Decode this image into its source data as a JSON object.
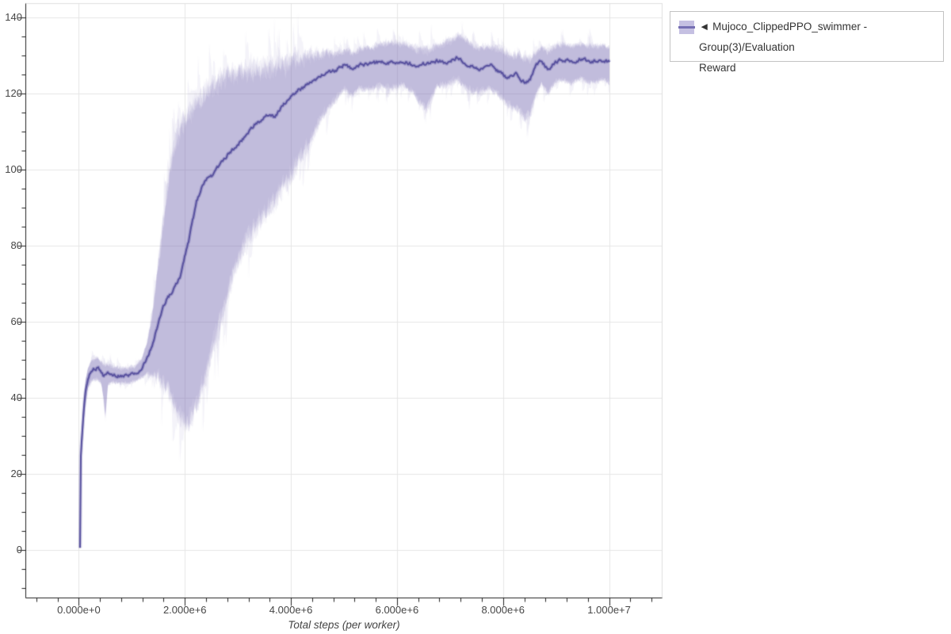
{
  "chart_data": {
    "type": "line",
    "title": "",
    "xlabel": "Total steps (per worker)",
    "ylabel": "",
    "grid": true,
    "legend_position": "top-right",
    "x_range": [
      -1000000,
      11000000
    ],
    "y_range": [
      -12.7,
      143.6
    ],
    "x_unit": 1000000,
    "x_ticks": [
      {
        "value": 0,
        "label": "0.000e+0"
      },
      {
        "value": 2000000,
        "label": "2.000e+6"
      },
      {
        "value": 4000000,
        "label": "4.000e+6"
      },
      {
        "value": 6000000,
        "label": "6.000e+6"
      },
      {
        "value": 8000000,
        "label": "8.000e+6"
      },
      {
        "value": 10000000,
        "label": "1.000e+7"
      }
    ],
    "x_minor_step": 400000,
    "y_ticks": [
      {
        "value": 0,
        "label": "0"
      },
      {
        "value": 20,
        "label": "20"
      },
      {
        "value": 40,
        "label": "40"
      },
      {
        "value": 60,
        "label": "60"
      },
      {
        "value": 80,
        "label": "80"
      },
      {
        "value": 100,
        "label": "100"
      },
      {
        "value": 120,
        "label": "120"
      },
      {
        "value": 140,
        "label": "140"
      }
    ],
    "y_minor_step": 5,
    "legend": {
      "lines": [
        "◄ Mujoco_ClippedPPO_swimmer - Group(3)/Evaluation",
        "Reward"
      ],
      "swatch_band_color": "#c5c0e2",
      "swatch_line_color": "#756eb3"
    },
    "series": [
      {
        "name": "Mujoco_ClippedPPO_swimmer - Group(3)/Evaluation Reward",
        "line_color": "#5a53a0",
        "band_color": "#7c73ba",
        "points_format": [
          "steps_millions",
          "mean",
          "band_low",
          "band_high"
        ],
        "points": [
          [
            0.02,
            0.5,
            0.5,
            0.5
          ],
          [
            0.03,
            14,
            13,
            15
          ],
          [
            0.04,
            26,
            24.5,
            27.5
          ],
          [
            0.06,
            29,
            26,
            31.5
          ],
          [
            0.09,
            36,
            33,
            39
          ],
          [
            0.13,
            42,
            39,
            45
          ],
          [
            0.18,
            45.5,
            43,
            48
          ],
          [
            0.25,
            47.3,
            44.5,
            50
          ],
          [
            0.35,
            47.8,
            45,
            50.5
          ],
          [
            0.42,
            47.0,
            44,
            49.5
          ],
          [
            0.47,
            45.2,
            40,
            48.5
          ],
          [
            0.5,
            46.0,
            34.5,
            48.5
          ],
          [
            0.55,
            46.2,
            43.5,
            48.5
          ],
          [
            0.65,
            46.0,
            44,
            48
          ],
          [
            0.8,
            45.7,
            43.8,
            47.6
          ],
          [
            0.95,
            45.9,
            44,
            47.8
          ],
          [
            1.08,
            46.4,
            44.5,
            48.3
          ],
          [
            1.18,
            47.6,
            45.3,
            49.8
          ],
          [
            1.28,
            50,
            46,
            54
          ],
          [
            1.38,
            53.5,
            46,
            61
          ],
          [
            1.48,
            58.5,
            45.5,
            73
          ],
          [
            1.58,
            63.5,
            44,
            85
          ],
          [
            1.68,
            66.5,
            42,
            96
          ],
          [
            1.76,
            67.5,
            39,
            103
          ],
          [
            1.85,
            70,
            35.5,
            108
          ],
          [
            1.93,
            72.5,
            33.5,
            111
          ],
          [
            2.0,
            77,
            33,
            113
          ],
          [
            2.07,
            81,
            34,
            114.5
          ],
          [
            2.14,
            86,
            35.5,
            116
          ],
          [
            2.22,
            91.5,
            38,
            117.5
          ],
          [
            2.32,
            95,
            42,
            119
          ],
          [
            2.42,
            97.5,
            47,
            120.5
          ],
          [
            2.52,
            98.5,
            53,
            122
          ],
          [
            2.62,
            100.5,
            58,
            123
          ],
          [
            2.72,
            102.5,
            63,
            124
          ],
          [
            2.85,
            104.5,
            70,
            125
          ],
          [
            3.0,
            106.5,
            76,
            125.5
          ],
          [
            3.15,
            109,
            81,
            126
          ],
          [
            3.3,
            111.5,
            85,
            126
          ],
          [
            3.45,
            113,
            87,
            126.5
          ],
          [
            3.6,
            114.5,
            90,
            127
          ],
          [
            3.7,
            113.5,
            92,
            126.5
          ],
          [
            3.8,
            116,
            94,
            127
          ],
          [
            3.95,
            118.5,
            96.5,
            128
          ],
          [
            4.1,
            120.5,
            101,
            128.5
          ],
          [
            4.25,
            121.5,
            105,
            129.5
          ],
          [
            4.4,
            123,
            109,
            130
          ],
          [
            4.55,
            124.5,
            113,
            130.5
          ],
          [
            4.7,
            125.5,
            116,
            130.5
          ],
          [
            4.85,
            126,
            118.5,
            130.5
          ],
          [
            5.0,
            127.5,
            121,
            131
          ],
          [
            5.15,
            126.5,
            119.5,
            130.5
          ],
          [
            5.3,
            127.5,
            121.5,
            131.5
          ],
          [
            5.5,
            127.8,
            121,
            132
          ],
          [
            5.7,
            128.3,
            122,
            133
          ],
          [
            5.9,
            128.0,
            121.5,
            133.5
          ],
          [
            6.1,
            128.6,
            122.5,
            133
          ],
          [
            6.3,
            127.4,
            120.5,
            132
          ],
          [
            6.55,
            127.8,
            115.5,
            131.5
          ],
          [
            6.75,
            128.5,
            122,
            132.5
          ],
          [
            6.95,
            128.3,
            122.5,
            133.5
          ],
          [
            7.15,
            129.4,
            123.5,
            135.3
          ],
          [
            7.35,
            127.2,
            121,
            133.5
          ],
          [
            7.55,
            126.5,
            120.5,
            132
          ],
          [
            7.75,
            127.7,
            121.5,
            132
          ],
          [
            7.95,
            125.3,
            119,
            131.5
          ],
          [
            8.1,
            124.0,
            117,
            130.5
          ],
          [
            8.25,
            125.0,
            116,
            130
          ],
          [
            8.4,
            122.8,
            113.5,
            129.5
          ],
          [
            8.5,
            123.3,
            114,
            129
          ],
          [
            8.62,
            127.2,
            120,
            130.5
          ],
          [
            8.72,
            128.5,
            122.5,
            132
          ],
          [
            8.85,
            126.3,
            120,
            131
          ],
          [
            9.0,
            128.3,
            123,
            132.5
          ],
          [
            9.15,
            128.8,
            123.5,
            133
          ],
          [
            9.3,
            128.2,
            122.5,
            132.5
          ],
          [
            9.45,
            129.0,
            124,
            133
          ],
          [
            9.6,
            128.6,
            123,
            132.5
          ],
          [
            9.75,
            128.3,
            123,
            132.3
          ],
          [
            9.9,
            128.6,
            123.5,
            132.5
          ],
          [
            10.0,
            128.3,
            123,
            132
          ]
        ]
      }
    ],
    "colors": {
      "grid": "#e6e6e6",
      "outline": "#e0e0e0",
      "axis": "#222222",
      "tick_text": "#454545",
      "background": "#ffffff"
    }
  }
}
